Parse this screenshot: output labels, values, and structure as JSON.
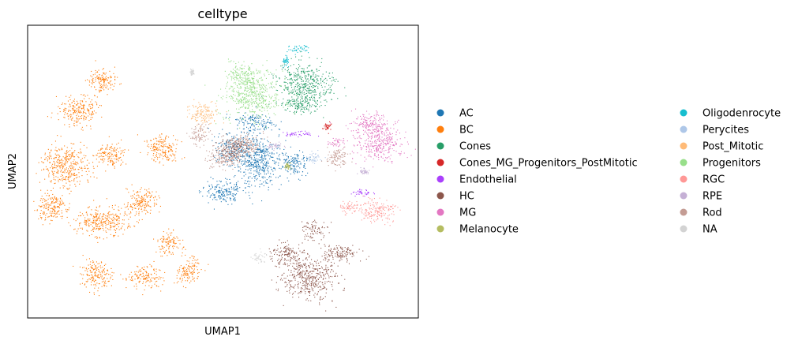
{
  "chart_data": {
    "type": "scatter",
    "title": "celltype",
    "xlabel": "UMAP1",
    "ylabel": "UMAP2",
    "xticks": [],
    "yticks": [],
    "grid": false,
    "legend_placement": "right, outside plot, two columns",
    "series": [
      {
        "name": "AC",
        "color": "#1f77b4",
        "clusters": [
          {
            "cx": 0.59,
            "cy": 0.46,
            "rx": 0.06,
            "ry": 0.09
          },
          {
            "cx": 0.5,
            "cy": 0.57,
            "rx": 0.05,
            "ry": 0.04
          },
          {
            "cx": 0.52,
            "cy": 0.42,
            "rx": 0.04,
            "ry": 0.05
          },
          {
            "cx": 0.68,
            "cy": 0.47,
            "rx": 0.04,
            "ry": 0.04
          },
          {
            "cx": 0.58,
            "cy": 0.33,
            "rx": 0.05,
            "ry": 0.03
          }
        ]
      },
      {
        "name": "BC",
        "color": "#ff7f0e",
        "clusters": [
          {
            "cx": 0.19,
            "cy": 0.67,
            "rx": 0.07,
            "ry": 0.05
          },
          {
            "cx": 0.1,
            "cy": 0.48,
            "rx": 0.06,
            "ry": 0.07
          },
          {
            "cx": 0.13,
            "cy": 0.29,
            "rx": 0.05,
            "ry": 0.05
          },
          {
            "cx": 0.17,
            "cy": 0.85,
            "rx": 0.04,
            "ry": 0.05
          },
          {
            "cx": 0.29,
            "cy": 0.6,
            "rx": 0.04,
            "ry": 0.05
          },
          {
            "cx": 0.34,
            "cy": 0.42,
            "rx": 0.04,
            "ry": 0.05
          },
          {
            "cx": 0.21,
            "cy": 0.44,
            "rx": 0.04,
            "ry": 0.04
          },
          {
            "cx": 0.36,
            "cy": 0.74,
            "rx": 0.03,
            "ry": 0.04
          },
          {
            "cx": 0.3,
            "cy": 0.86,
            "rx": 0.04,
            "ry": 0.04
          },
          {
            "cx": 0.41,
            "cy": 0.84,
            "rx": 0.03,
            "ry": 0.05
          },
          {
            "cx": 0.19,
            "cy": 0.19,
            "rx": 0.04,
            "ry": 0.04
          },
          {
            "cx": 0.06,
            "cy": 0.62,
            "rx": 0.04,
            "ry": 0.05
          }
        ]
      },
      {
        "name": "Cones",
        "color": "#279e68",
        "clusters": [
          {
            "cx": 0.71,
            "cy": 0.2,
            "rx": 0.07,
            "ry": 0.07
          },
          {
            "cx": 0.7,
            "cy": 0.27,
            "rx": 0.05,
            "ry": 0.03
          }
        ]
      },
      {
        "name": "Cones_MG_Progenitors_PostMitotic",
        "color": "#d62728",
        "clusters": [
          {
            "cx": 0.765,
            "cy": 0.345,
            "rx": 0.01,
            "ry": 0.015
          }
        ]
      },
      {
        "name": "Endothelial",
        "color": "#aa40fc",
        "clusters": [
          {
            "cx": 0.69,
            "cy": 0.37,
            "rx": 0.04,
            "ry": 0.012
          },
          {
            "cx": 0.855,
            "cy": 0.57,
            "rx": 0.025,
            "ry": 0.012
          }
        ]
      },
      {
        "name": "HC",
        "color": "#8c564b",
        "clusters": [
          {
            "cx": 0.72,
            "cy": 0.86,
            "rx": 0.07,
            "ry": 0.07
          },
          {
            "cx": 0.8,
            "cy": 0.78,
            "rx": 0.05,
            "ry": 0.03
          },
          {
            "cx": 0.66,
            "cy": 0.78,
            "rx": 0.04,
            "ry": 0.04
          },
          {
            "cx": 0.53,
            "cy": 0.42,
            "rx": 0.04,
            "ry": 0.04
          },
          {
            "cx": 0.73,
            "cy": 0.7,
            "rx": 0.03,
            "ry": 0.03
          }
        ]
      },
      {
        "name": "MG",
        "color": "#e377c2",
        "clusters": [
          {
            "cx": 0.9,
            "cy": 0.4,
            "rx": 0.06,
            "ry": 0.06
          },
          {
            "cx": 0.88,
            "cy": 0.34,
            "rx": 0.05,
            "ry": 0.04
          },
          {
            "cx": 0.79,
            "cy": 0.4,
            "rx": 0.02,
            "ry": 0.02
          }
        ]
      },
      {
        "name": "Melanocyte",
        "color": "#b5bd61",
        "clusters": [
          {
            "cx": 0.665,
            "cy": 0.48,
            "rx": 0.008,
            "ry": 0.01
          }
        ]
      },
      {
        "name": "Oligodenrocyte",
        "color": "#17becf",
        "clusters": [
          {
            "cx": 0.69,
            "cy": 0.08,
            "rx": 0.03,
            "ry": 0.015
          },
          {
            "cx": 0.66,
            "cy": 0.12,
            "rx": 0.008,
            "ry": 0.02
          }
        ]
      },
      {
        "name": "Perycites",
        "color": "#aec7e8",
        "clusters": [
          {
            "cx": 0.73,
            "cy": 0.45,
            "rx": 0.02,
            "ry": 0.02
          }
        ]
      },
      {
        "name": "Post_Mitotic",
        "color": "#ffbb78",
        "clusters": [
          {
            "cx": 0.45,
            "cy": 0.3,
            "rx": 0.04,
            "ry": 0.04
          }
        ]
      },
      {
        "name": "Progenitors",
        "color": "#98df8a",
        "clusters": [
          {
            "cx": 0.57,
            "cy": 0.24,
            "rx": 0.07,
            "ry": 0.08
          },
          {
            "cx": 0.55,
            "cy": 0.17,
            "rx": 0.04,
            "ry": 0.04
          }
        ]
      },
      {
        "name": "RGC",
        "color": "#ff9896",
        "clusters": [
          {
            "cx": 0.89,
            "cy": 0.63,
            "rx": 0.05,
            "ry": 0.04
          },
          {
            "cx": 0.82,
            "cy": 0.62,
            "rx": 0.03,
            "ry": 0.02
          }
        ]
      },
      {
        "name": "RPE",
        "color": "#c5b0d5",
        "clusters": [
          {
            "cx": 0.63,
            "cy": 0.41,
            "rx": 0.02,
            "ry": 0.012
          },
          {
            "cx": 0.86,
            "cy": 0.5,
            "rx": 0.015,
            "ry": 0.01
          }
        ]
      },
      {
        "name": "Rod",
        "color": "#c49c94",
        "clusters": [
          {
            "cx": 0.55,
            "cy": 0.41,
            "rx": 0.05,
            "ry": 0.04
          },
          {
            "cx": 0.5,
            "cy": 0.45,
            "rx": 0.04,
            "ry": 0.04
          },
          {
            "cx": 0.44,
            "cy": 0.37,
            "rx": 0.025,
            "ry": 0.04
          },
          {
            "cx": 0.79,
            "cy": 0.45,
            "rx": 0.03,
            "ry": 0.04
          }
        ]
      },
      {
        "name": "NA",
        "color": "#d3d3d3",
        "clusters": [
          {
            "cx": 0.59,
            "cy": 0.79,
            "rx": 0.02,
            "ry": 0.02
          },
          {
            "cx": 0.42,
            "cy": 0.16,
            "rx": 0.005,
            "ry": 0.01
          }
        ]
      }
    ]
  }
}
